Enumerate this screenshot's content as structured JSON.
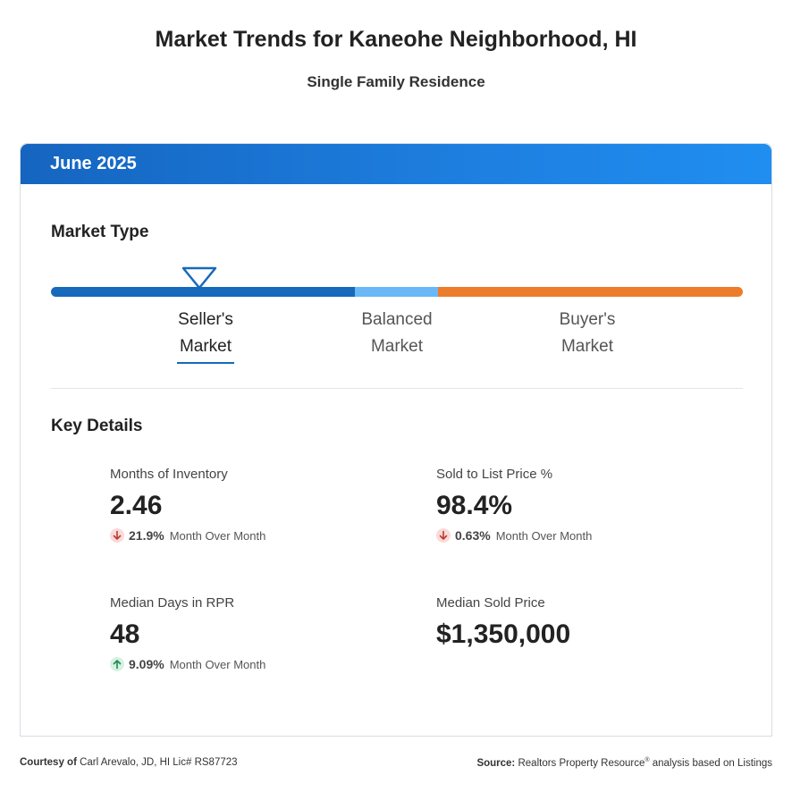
{
  "header": {
    "title": "Market Trends for Kaneohe Neighborhood, HI",
    "subtitle": "Single Family Residence"
  },
  "card": {
    "period": "June 2025",
    "market_type_title": "Market Type",
    "market_labels": {
      "seller_line1": "Seller's",
      "seller_line2": "Market",
      "balanced_line1": "Balanced",
      "balanced_line2": "Market",
      "buyer_line1": "Buyer's",
      "buyer_line2": "Market"
    },
    "active_market": "Seller's Market",
    "colors": {
      "seller": "#1769bb",
      "balanced": "#6ab8f7",
      "buyer": "#ec7c2a",
      "header": "#1e7fe0"
    },
    "key_details_title": "Key Details",
    "metrics": {
      "months_inventory": {
        "label": "Months of Inventory",
        "value": "2.46",
        "direction": "down",
        "change": "21.9%",
        "change_label": "Month Over Month"
      },
      "sold_to_list": {
        "label": "Sold to List Price %",
        "value": "98.4%",
        "direction": "down",
        "change": "0.63%",
        "change_label": "Month Over Month"
      },
      "median_days": {
        "label": "Median Days in RPR",
        "value": "48",
        "direction": "up",
        "change": "9.09%",
        "change_label": "Month Over Month"
      },
      "median_price": {
        "label": "Median Sold Price",
        "value": "$1,350,000"
      }
    }
  },
  "footer": {
    "courtesy_label": "Courtesy of",
    "courtesy_text": "Carl Arevalo, JD, HI Lic# RS87723",
    "source_label": "Source:",
    "source_text_a": "Realtors Property Resource",
    "source_reg": "®",
    "source_text_b": "analysis based on Listings"
  }
}
